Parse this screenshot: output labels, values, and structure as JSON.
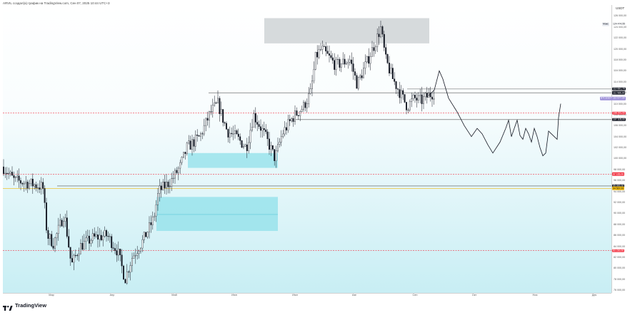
{
  "header": {
    "title": "ARVIL создал(а) график на TradingView.com, Сен 07, 2025 10:44 UTC+3"
  },
  "axis": {
    "currency": "USDT",
    "price_ticks": [
      "126 000,00",
      "124 000,00",
      "122 000,00",
      "120 000,00",
      "118 000,00",
      "116 000,00",
      "114 000,00",
      "112 000,00",
      "110 000,00",
      "108 000,00",
      "106 000,00",
      "104 000,00",
      "102 000,00",
      "100 000,00",
      "98 000,00",
      "96 000,00",
      "94 000,00",
      "92 000,00",
      "90 000,00",
      "88 000,00",
      "86 000,00",
      "84 000,00",
      "82 000,00",
      "80 000,00",
      "78 000,00",
      "76 000,00"
    ],
    "time_ticks": [
      "Мар",
      "Апр",
      "Май",
      "Июн",
      "Июл",
      "Авг",
      "Сен",
      "Окт",
      "Ноя",
      "Дек"
    ]
  },
  "price_labels": [
    {
      "name": "max-label",
      "text": "124 474,55",
      "bg": "#ffffff",
      "fg": "#131722",
      "price": 124474.55
    },
    {
      "name": "level-112",
      "text": "112 681,78",
      "bg": "#131722",
      "fg": "#ffffff",
      "price": 112681.78
    },
    {
      "name": "level-111",
      "text": "111 986,00",
      "bg": "#131722",
      "fg": "#ffffff",
      "price": 111986.0
    },
    {
      "name": "current-price",
      "text": "110 977,00",
      "bg": "#9c8fd8",
      "fg": "#ffffff",
      "price": 110977.0
    },
    {
      "name": "red-level-108",
      "text": "108 291,00",
      "bg": "#f23645",
      "fg": "#ffffff",
      "price": 108291.0
    },
    {
      "name": "level-107",
      "text": "107 105,00",
      "bg": "#131722",
      "fg": "#ffffff",
      "price": 107105.0
    },
    {
      "name": "red-level-97",
      "text": "97 165,00",
      "bg": "#f23645",
      "fg": "#ffffff",
      "price": 97165.0
    },
    {
      "name": "level-95",
      "text": "95 000,00",
      "bg": "#131722",
      "fg": "#ffffff",
      "price": 95000.0
    },
    {
      "name": "level-94",
      "text": "94 567,00",
      "bg": "#f0b90b",
      "fg": "#131722",
      "price": 94567.0
    },
    {
      "name": "red-level-83",
      "text": "83 230,00",
      "bg": "#f23645",
      "fg": "#ffffff",
      "price": 83230.0
    }
  ],
  "side_tags": [
    {
      "name": "max-tag",
      "text": "Макс",
      "price": 124474.55
    },
    {
      "name": "bitcoin-tag",
      "text": "BTCUSDT",
      "price": 110977.0
    }
  ],
  "chart_data": {
    "type": "candlestick",
    "symbol": "BTCUSDT",
    "ylim": [
      75500,
      128000
    ],
    "levels": [
      {
        "price": 112681.78,
        "style": "solid",
        "color": "#555555"
      },
      {
        "price": 111986.0,
        "style": "solid",
        "color": "#555555"
      },
      {
        "price": 108291.0,
        "style": "dashed",
        "color": "#f23645"
      },
      {
        "price": 107105.0,
        "style": "solid",
        "color": "#555555"
      },
      {
        "price": 97165.0,
        "style": "dashed",
        "color": "#f23645"
      },
      {
        "price": 95000.0,
        "style": "solid",
        "color": "#555555"
      },
      {
        "price": 94567.0,
        "style": "solid",
        "color": "#f0b90b"
      },
      {
        "price": 83230.0,
        "style": "dashed",
        "color": "#f23645"
      }
    ],
    "zones": [
      {
        "name": "supply-zone",
        "from": 121000,
        "to": 125600,
        "color": "#cfd3d6"
      },
      {
        "name": "demand-zone-upper",
        "from": 98300,
        "to": 101000,
        "color": "#8fe0ea"
      },
      {
        "name": "demand-zone-lower",
        "from": 86800,
        "to": 93000,
        "color": "#8fe0ea"
      }
    ],
    "ohlc": []
  },
  "branding": {
    "logo_text": "TradingView"
  }
}
